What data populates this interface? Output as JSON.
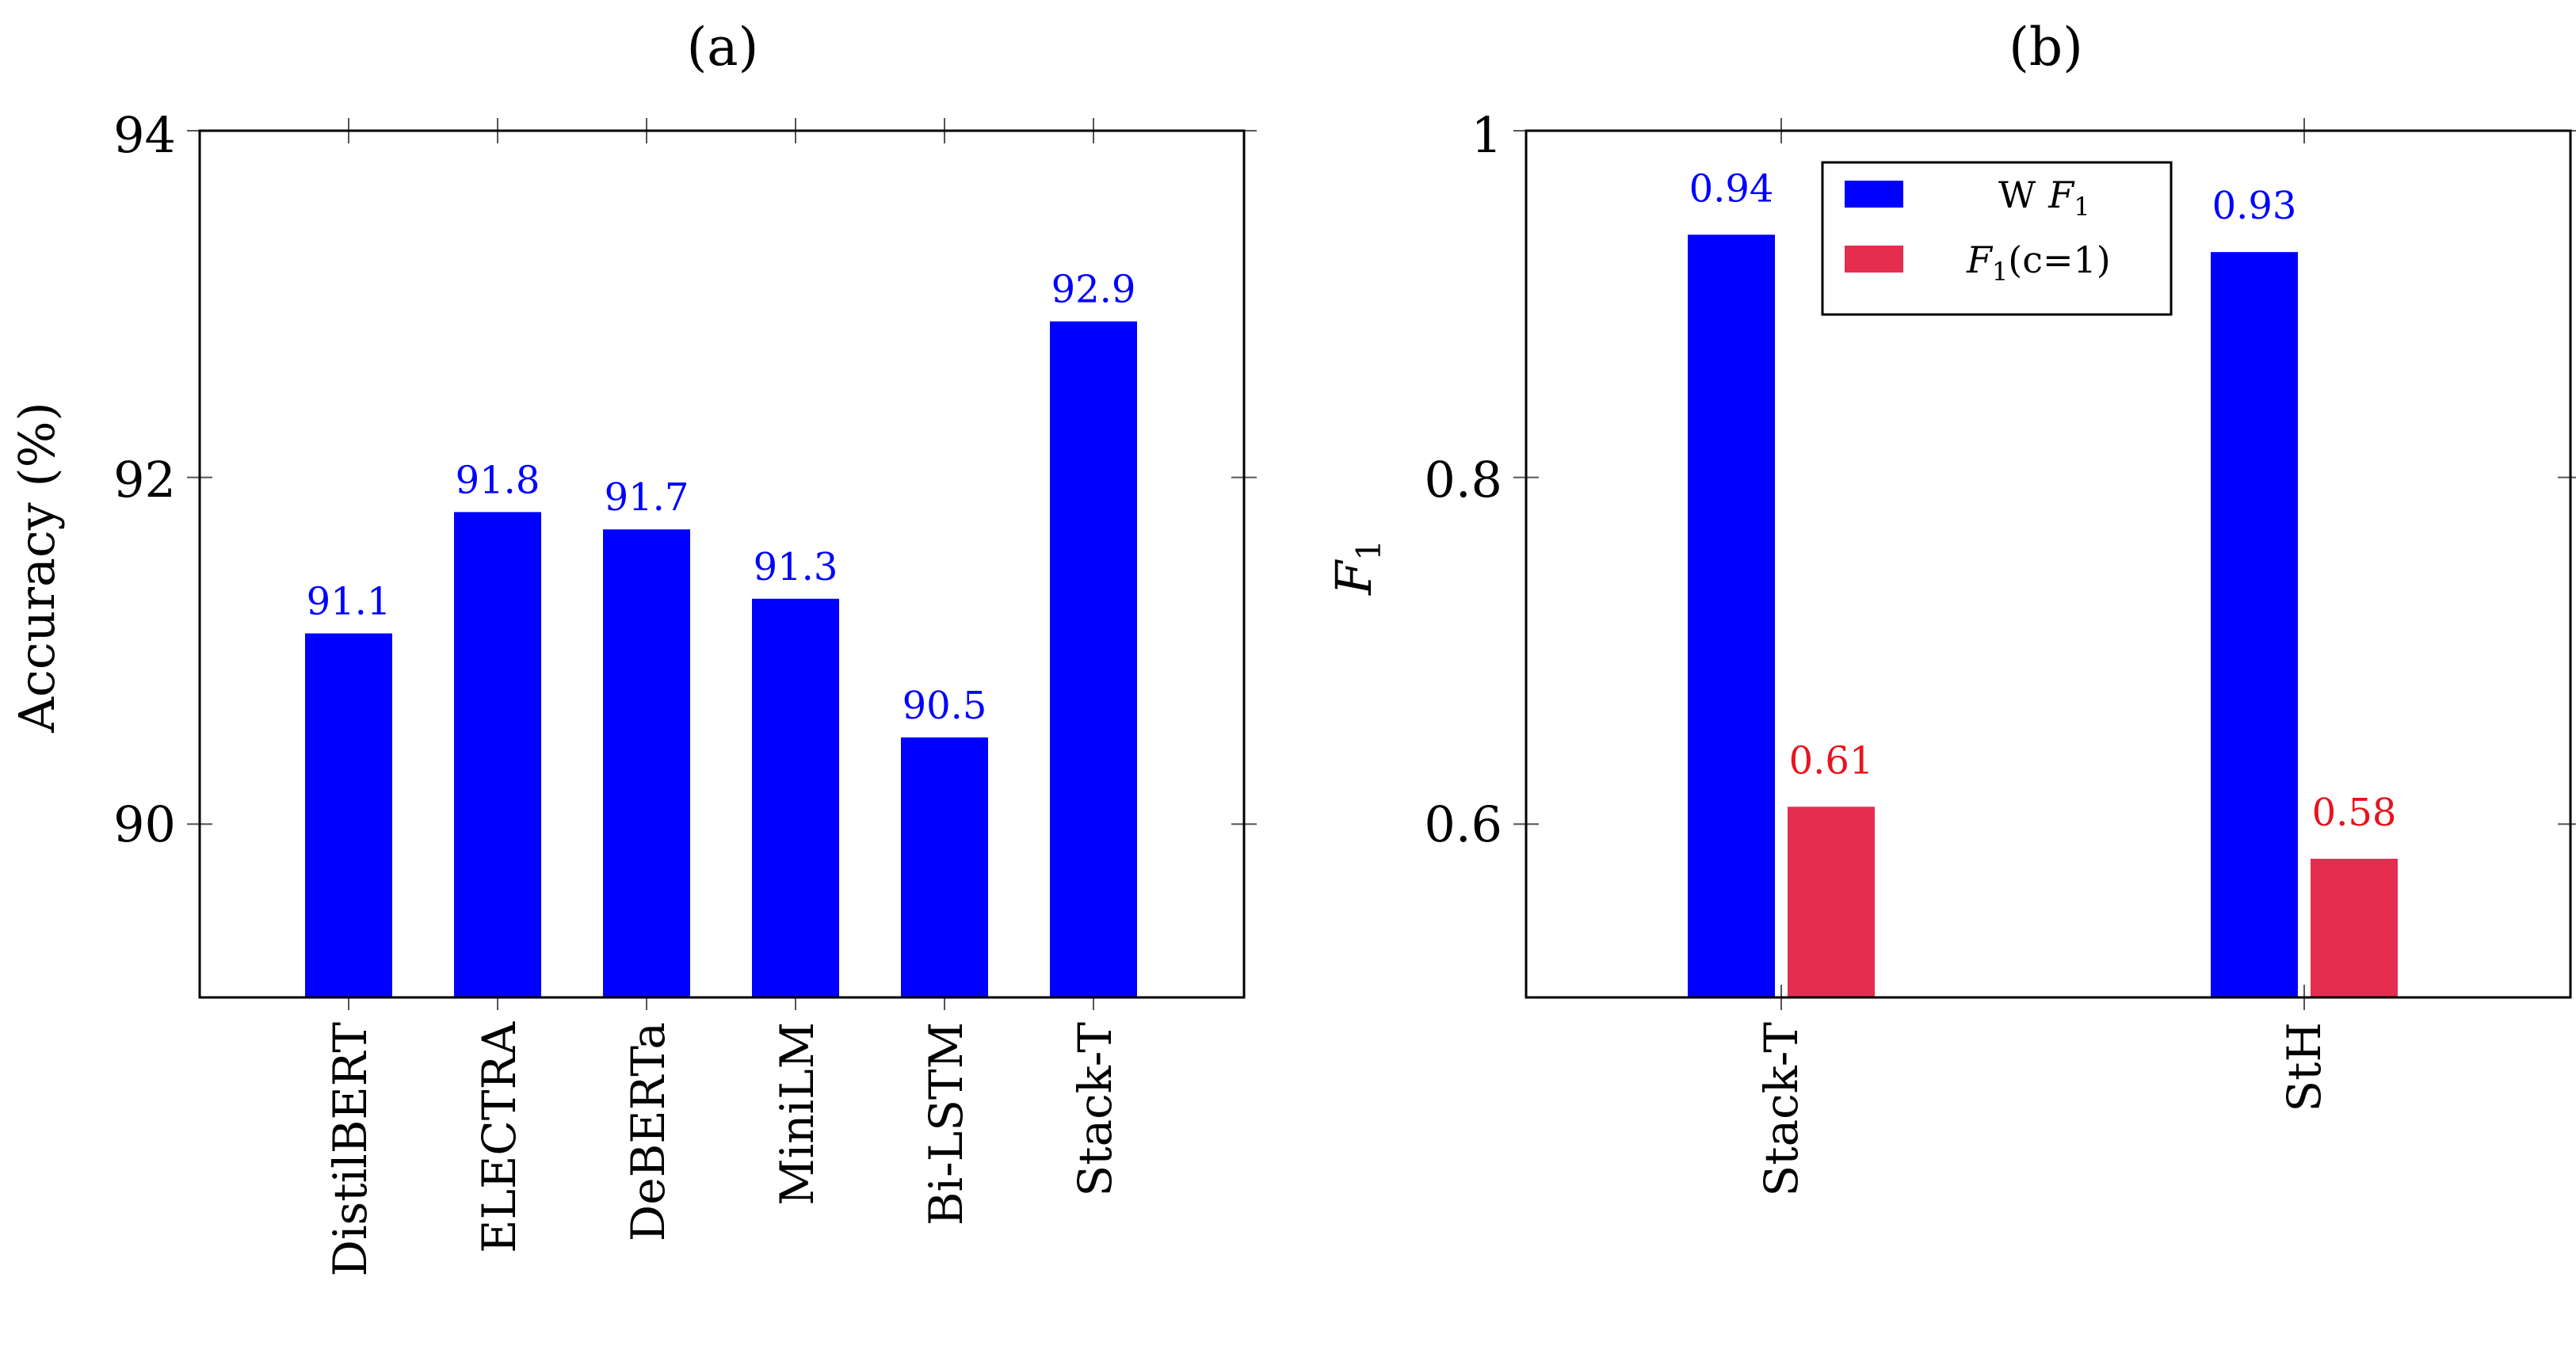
{
  "chart_data": [
    {
      "panel": "(a)",
      "type": "bar",
      "title": "(a)",
      "xlabel": "",
      "ylabel": "Accuracy (%)",
      "ylim": [
        89,
        94
      ],
      "yticks": [
        "90",
        "92",
        "94"
      ],
      "grid": false,
      "categories": [
        "DistilBERT",
        "ELECTRA",
        "DeBERTa",
        "MiniLM",
        "Bi-LSTM",
        "Stack-T"
      ],
      "series": [
        {
          "name": "Accuracy",
          "color": "#0000ff",
          "values": [
            91.1,
            91.8,
            91.7,
            91.3,
            90.5,
            92.9
          ],
          "labels": [
            "91.1",
            "91.8",
            "91.7",
            "91.3",
            "90.5",
            "92.9"
          ]
        }
      ]
    },
    {
      "panel": "(b)",
      "type": "bar",
      "title": "(b)",
      "xlabel": "",
      "ylabel": "F1",
      "ylim": [
        0.5,
        1.0
      ],
      "yticks": [
        "0.6",
        "0.8",
        "1"
      ],
      "grid": false,
      "legend_position": "top-center",
      "categories": [
        "Stack-T",
        "StH"
      ],
      "series": [
        {
          "name": "W F1",
          "legend_prefix": "W",
          "color": "#0000ff",
          "values": [
            0.94,
            0.93
          ],
          "labels": [
            "0.94",
            "0.93"
          ]
        },
        {
          "name": "F1(c=1)",
          "legend_suffix": "(c=1)",
          "color": "#e52d50",
          "values": [
            0.61,
            0.58
          ],
          "labels": [
            "0.61",
            "0.58"
          ]
        }
      ]
    }
  ]
}
